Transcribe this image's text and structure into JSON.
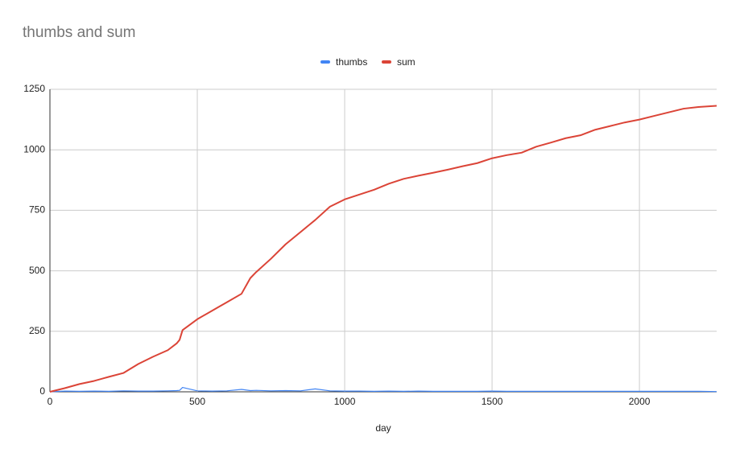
{
  "chart_data": {
    "type": "line",
    "title": "thumbs and sum",
    "x_label": "day",
    "x": [
      0,
      50,
      100,
      150,
      200,
      250,
      300,
      350,
      400,
      430,
      440,
      450,
      500,
      550,
      600,
      650,
      680,
      700,
      750,
      800,
      850,
      900,
      950,
      1000,
      1050,
      1100,
      1150,
      1200,
      1250,
      1300,
      1350,
      1400,
      1450,
      1500,
      1550,
      1600,
      1650,
      1700,
      1750,
      1800,
      1850,
      1900,
      1950,
      2000,
      2050,
      2100,
      2150,
      2200,
      2262
    ],
    "series": [
      {
        "name": "thumbs",
        "color": "#4285f4",
        "values": [
          0,
          3,
          2,
          3,
          2,
          4,
          3,
          3,
          4,
          5,
          6,
          18,
          4,
          3,
          4,
          10,
          5,
          6,
          4,
          5,
          4,
          12,
          4,
          3,
          3,
          2,
          3,
          2,
          3,
          2,
          2,
          2,
          2,
          3,
          2,
          2,
          2,
          2,
          2,
          2,
          2,
          2,
          2,
          2,
          2,
          2,
          2,
          2,
          1
        ]
      },
      {
        "name": "sum",
        "color": "#db4437",
        "values": [
          0,
          15,
          32,
          45,
          62,
          78,
          115,
          145,
          172,
          200,
          215,
          255,
          300,
          335,
          370,
          405,
          470,
          495,
          550,
          610,
          660,
          710,
          765,
          795,
          815,
          835,
          860,
          880,
          893,
          905,
          918,
          932,
          945,
          965,
          978,
          988,
          1013,
          1030,
          1048,
          1060,
          1083,
          1098,
          1113,
          1125,
          1140,
          1155,
          1170,
          1177,
          1182
        ]
      }
    ],
    "xlim": [
      0,
      2262
    ],
    "xticks": [
      0,
      500,
      1000,
      1500,
      2000
    ],
    "ylim": [
      0,
      1250
    ],
    "yticks": [
      0,
      250,
      500,
      750,
      1000,
      1250
    ],
    "grid": true,
    "legend": "top"
  }
}
